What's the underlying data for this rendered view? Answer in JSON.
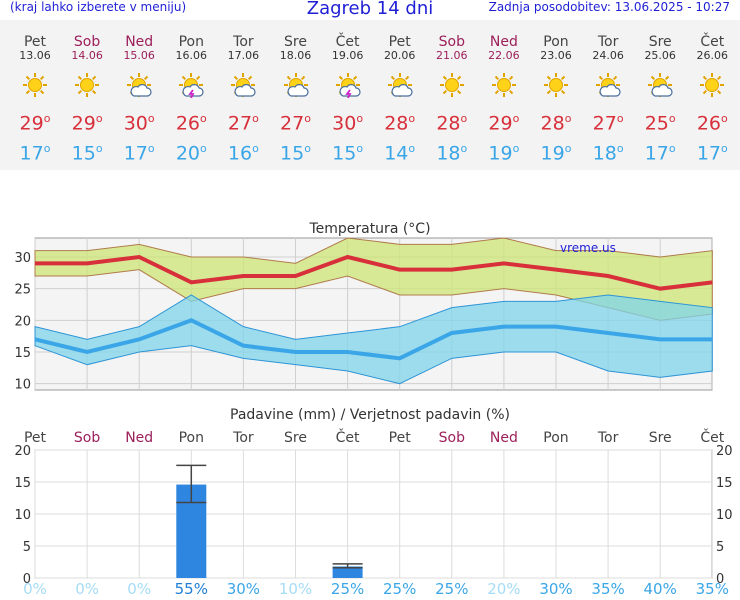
{
  "header": {
    "left_note": "(kraj lahko izberete v meniju)",
    "title": "Zagreb 14 dni",
    "updated": "Zadnja posodobitev: 13.06.2025 - 10:27"
  },
  "colors": {
    "title_blue": "#1f1fd6",
    "weekend": "#9c1f5a",
    "max_temp": "#d8303b",
    "min_temp": "#3aa6e8",
    "bar": "#2e86e0"
  },
  "days": [
    {
      "name": "Pet",
      "date": "13.06",
      "weekend": false,
      "icon": "sun-icon",
      "tmax": "29",
      "tmin": "17",
      "rain_prob": "0%"
    },
    {
      "name": "Sob",
      "date": "14.06",
      "weekend": true,
      "icon": "sun-icon",
      "tmax": "29",
      "tmin": "15",
      "rain_prob": "0%"
    },
    {
      "name": "Ned",
      "date": "15.06",
      "weekend": true,
      "icon": "sun-cloud-icon",
      "tmax": "30",
      "tmin": "17",
      "rain_prob": "0%"
    },
    {
      "name": "Pon",
      "date": "16.06",
      "weekend": false,
      "icon": "sun-cloud-storm-icon",
      "tmax": "26",
      "tmin": "20",
      "rain_prob": "55%"
    },
    {
      "name": "Tor",
      "date": "17.06",
      "weekend": false,
      "icon": "sun-cloud-icon",
      "tmax": "27",
      "tmin": "16",
      "rain_prob": "30%"
    },
    {
      "name": "Sre",
      "date": "18.06",
      "weekend": false,
      "icon": "sun-cloud-icon",
      "tmax": "27",
      "tmin": "15",
      "rain_prob": "10%"
    },
    {
      "name": "Čet",
      "date": "19.06",
      "weekend": false,
      "icon": "sun-cloud-storm-icon",
      "tmax": "30",
      "tmin": "15",
      "rain_prob": "25%"
    },
    {
      "name": "Pet",
      "date": "20.06",
      "weekend": false,
      "icon": "sun-cloud-icon",
      "tmax": "28",
      "tmin": "14",
      "rain_prob": "25%"
    },
    {
      "name": "Sob",
      "date": "21.06",
      "weekend": true,
      "icon": "sun-icon",
      "tmax": "28",
      "tmin": "18",
      "rain_prob": "25%"
    },
    {
      "name": "Ned",
      "date": "22.06",
      "weekend": true,
      "icon": "sun-icon",
      "tmax": "29",
      "tmin": "19",
      "rain_prob": "20%"
    },
    {
      "name": "Pon",
      "date": "23.06",
      "weekend": false,
      "icon": "sun-icon",
      "tmax": "28",
      "tmin": "19",
      "rain_prob": "30%"
    },
    {
      "name": "Tor",
      "date": "24.06",
      "weekend": false,
      "icon": "sun-cloud-icon",
      "tmax": "27",
      "tmin": "18",
      "rain_prob": "35%"
    },
    {
      "name": "Sre",
      "date": "25.06",
      "weekend": false,
      "icon": "sun-cloud-icon",
      "tmax": "25",
      "tmin": "17",
      "rain_prob": "40%"
    },
    {
      "name": "Čet",
      "date": "26.06",
      "weekend": false,
      "icon": "sun-icon",
      "tmax": "26",
      "tmin": "17",
      "rain_prob": "35%"
    }
  ],
  "chart_data": [
    {
      "type": "line",
      "title": "Temperatura (°C)",
      "watermark": "vreme.us",
      "categories": [
        "Pet",
        "Sob",
        "Ned",
        "Pon",
        "Tor",
        "Sre",
        "Čet",
        "Pet",
        "Sob",
        "Ned",
        "Pon",
        "Tor",
        "Sre",
        "Čet"
      ],
      "ylim": [
        9,
        33
      ],
      "yticks": [
        10,
        15,
        20,
        25,
        30
      ],
      "grid": true,
      "series": [
        {
          "values": [
            29,
            29,
            30,
            26,
            27,
            27,
            30,
            28,
            28,
            29,
            28,
            27,
            25,
            26
          ],
          "color": "#d8303b"
        },
        {
          "values": [
            17,
            15,
            17,
            20,
            16,
            15,
            15,
            14,
            18,
            19,
            19,
            18,
            17,
            17
          ],
          "color": "#3aa6e8"
        }
      ],
      "max_range": {
        "low": [
          27,
          27,
          28,
          23,
          25,
          25,
          27,
          24,
          24,
          25,
          24,
          22,
          20,
          21
        ],
        "high": [
          31,
          31,
          32,
          30,
          30,
          29,
          33,
          32,
          32,
          33,
          31,
          31,
          30,
          31
        ]
      },
      "min_range": {
        "low": [
          16,
          13,
          15,
          16,
          14,
          13,
          12,
          10,
          14,
          15,
          15,
          12,
          11,
          12
        ],
        "high": [
          19,
          17,
          19,
          24,
          19,
          17,
          18,
          19,
          22,
          23,
          23,
          24,
          23,
          22
        ]
      }
    },
    {
      "type": "bar",
      "title": "Padavine (mm) / Verjetnost padavin (%)",
      "categories": [
        "Pet",
        "Sob",
        "Ned",
        "Pon",
        "Tor",
        "Sre",
        "Čet",
        "Pet",
        "Sob",
        "Ned",
        "Pon",
        "Tor",
        "Sre",
        "Čet"
      ],
      "values": [
        0,
        0,
        0,
        14.6,
        0,
        0,
        1.8,
        0,
        0,
        0,
        0,
        0,
        0,
        0
      ],
      "error_low": [
        0,
        0,
        0,
        11.8,
        0,
        0,
        1.6,
        0,
        0,
        0,
        0,
        0,
        0,
        0
      ],
      "error_high": [
        0,
        0,
        0,
        17.6,
        0,
        0,
        2.2,
        0,
        0,
        0,
        0,
        0,
        0,
        0
      ],
      "ylim": [
        0,
        20
      ],
      "yticks": [
        0,
        5,
        10,
        15,
        20
      ],
      "grid": true
    }
  ]
}
